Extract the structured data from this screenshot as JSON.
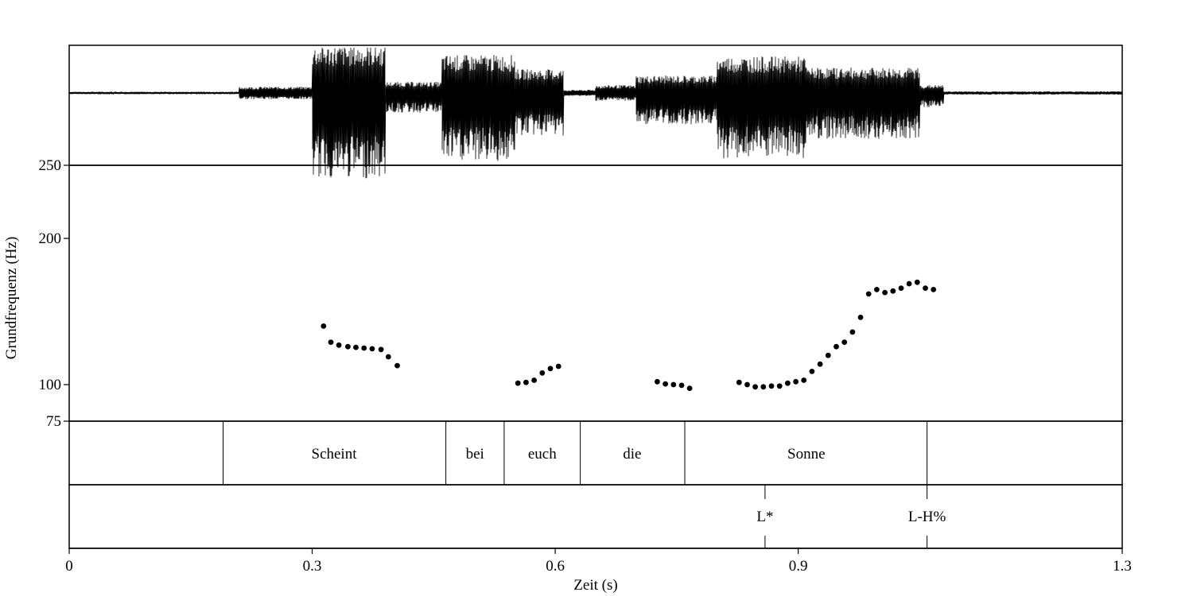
{
  "chart_data": {
    "type": "scatter",
    "title": "",
    "xlabel": "Zeit (s)",
    "ylabel": "Grundfrequenz (Hz)",
    "xlim": [
      0,
      1.3
    ],
    "ylim": [
      75,
      250
    ],
    "x_ticks": [
      "0",
      "0.3",
      "0.6",
      "0.9",
      "1.3"
    ],
    "y_ticks": [
      "75",
      "100",
      "200",
      "250"
    ],
    "series": [
      {
        "points": [
          {
            "x": 0.314,
            "y": 140
          },
          {
            "x": 0.323,
            "y": 129
          },
          {
            "x": 0.333,
            "y": 127
          },
          {
            "x": 0.344,
            "y": 126
          },
          {
            "x": 0.354,
            "y": 125.5
          },
          {
            "x": 0.364,
            "y": 125
          },
          {
            "x": 0.374,
            "y": 124.5
          },
          {
            "x": 0.385,
            "y": 124
          },
          {
            "x": 0.394,
            "y": 119
          },
          {
            "x": 0.405,
            "y": 113
          },
          {
            "x": 0.554,
            "y": 101
          },
          {
            "x": 0.564,
            "y": 101.5
          },
          {
            "x": 0.574,
            "y": 103
          },
          {
            "x": 0.584,
            "y": 108
          },
          {
            "x": 0.594,
            "y": 111
          },
          {
            "x": 0.604,
            "y": 112.5
          },
          {
            "x": 0.726,
            "y": 102
          },
          {
            "x": 0.736,
            "y": 100.5
          },
          {
            "x": 0.746,
            "y": 100
          },
          {
            "x": 0.756,
            "y": 99.5
          },
          {
            "x": 0.766,
            "y": 97.5
          },
          {
            "x": 0.827,
            "y": 101.5
          },
          {
            "x": 0.837,
            "y": 100
          },
          {
            "x": 0.847,
            "y": 98.5
          },
          {
            "x": 0.857,
            "y": 98.5
          },
          {
            "x": 0.867,
            "y": 99
          },
          {
            "x": 0.877,
            "y": 99
          },
          {
            "x": 0.887,
            "y": 101
          },
          {
            "x": 0.897,
            "y": 102
          },
          {
            "x": 0.907,
            "y": 103
          },
          {
            "x": 0.917,
            "y": 109
          },
          {
            "x": 0.927,
            "y": 114
          },
          {
            "x": 0.937,
            "y": 120
          },
          {
            "x": 0.947,
            "y": 126
          },
          {
            "x": 0.957,
            "y": 129
          },
          {
            "x": 0.967,
            "y": 136
          },
          {
            "x": 0.977,
            "y": 146
          },
          {
            "x": 0.987,
            "y": 162
          },
          {
            "x": 0.997,
            "y": 165
          },
          {
            "x": 1.007,
            "y": 163
          },
          {
            "x": 1.017,
            "y": 164
          },
          {
            "x": 1.027,
            "y": 166
          },
          {
            "x": 1.037,
            "y": 169
          },
          {
            "x": 1.047,
            "y": 170
          },
          {
            "x": 1.057,
            "y": 166
          },
          {
            "x": 1.067,
            "y": 165
          }
        ]
      }
    ],
    "word_tier": {
      "boundaries": [
        0.19,
        0.465,
        0.537,
        0.631,
        0.76,
        1.059
      ],
      "intervals": [
        {
          "label": "Scheint",
          "x": 0.327
        },
        {
          "label": "bei",
          "x": 0.501
        },
        {
          "label": "euch",
          "x": 0.584
        },
        {
          "label": "die",
          "x": 0.695
        },
        {
          "label": "Sonne",
          "x": 0.91
        }
      ]
    },
    "tone_tier": {
      "points": [
        {
          "label": "L*",
          "x": 0.859
        },
        {
          "label": "L-H%",
          "x": 1.059
        }
      ]
    },
    "waveform": true,
    "grid": false,
    "legend": "none"
  }
}
